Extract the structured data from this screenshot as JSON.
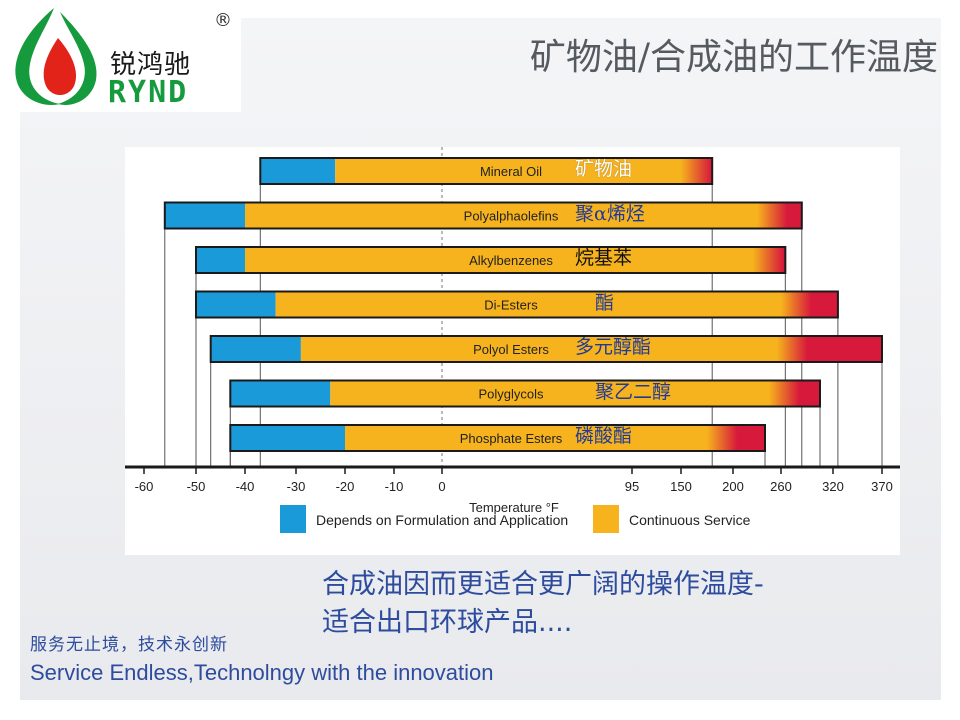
{
  "brand": {
    "name_cn": "锐鸿驰",
    "name_en": "RYND",
    "registered_mark": "®",
    "colors": {
      "green": "#169a3e",
      "red": "#e2231a"
    }
  },
  "page": {
    "title": "矿物油/合成油的工作温度"
  },
  "chart_data": {
    "type": "bar",
    "orientation": "horizontal-range",
    "xlabel": "Temperature °F",
    "x_ticks": [
      "-60",
      "-50",
      "-40",
      "-30",
      "-20",
      "-10",
      "0",
      "95",
      "150",
      "200",
      "260",
      "320",
      "370"
    ],
    "tick_positions_note": "axis is piecewise: -60 to 0 linear in 10°F steps, then 0, 95, 150, 200, 260, 320, 370 spaced as printed",
    "series_colors": {
      "Depends on Formulation and Application": "#1a9ad9",
      "Continuous Service": "#f7b31e",
      "high_end": "#d71a3b"
    },
    "legend": [
      "Depends on Formulation and Application",
      "Continuous Service"
    ],
    "legend_placement": "bottom",
    "categories": [
      {
        "name": "Mineral Oil",
        "name_cn": "矿物油",
        "min": -37,
        "blue_end": -22,
        "orange_end": 150,
        "max": 180
      },
      {
        "name": "Polyalphaolefins",
        "name_cn": "聚α烯烃",
        "min": -56,
        "blue_end": -40,
        "orange_end": 230,
        "max": 284
      },
      {
        "name": "Alkylbenzenes",
        "name_cn": "烷基苯",
        "min": -50,
        "blue_end": -40,
        "orange_end": 225,
        "max": 265
      },
      {
        "name": "Di-Esters",
        "name_cn": "酯",
        "min": -50,
        "blue_end": -34,
        "orange_end": 260,
        "max": 325
      },
      {
        "name": "Polyol Esters",
        "name_cn": "多元醇酯",
        "min": -47,
        "blue_end": -29,
        "orange_end": 255,
        "max": 370
      },
      {
        "name": "Polyglycols",
        "name_cn": "聚乙二醇",
        "min": -43,
        "blue_end": -23,
        "orange_end": 245,
        "max": 305
      },
      {
        "name": "Phosphate Esters",
        "name_cn": "磷酸酯",
        "min": -43,
        "blue_end": -20,
        "orange_end": 175,
        "max": 240
      }
    ]
  },
  "caption": {
    "line1": "合成油因而更适合更广阔的操作温度-",
    "line2": "适合出口环球产品...."
  },
  "slogan": {
    "cn": "服务无止境，技术永创新",
    "en": "Service Endless,Technolngy with the innovation"
  }
}
